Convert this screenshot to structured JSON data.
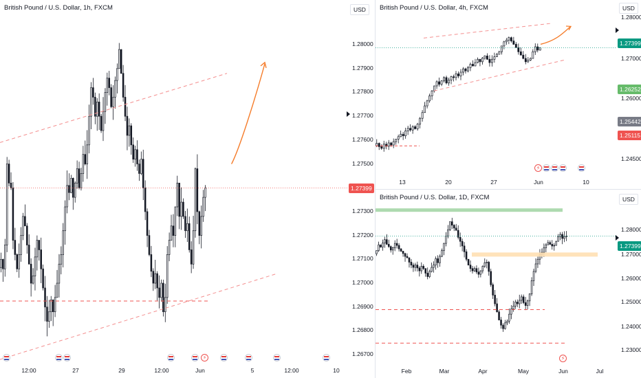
{
  "chart_data": [
    {
      "id": "h1",
      "type": "candlestick",
      "title": "British Pound / U.S. Dollar, 1h, FXCM",
      "currency": "USD",
      "x_ticks": [
        "12:00",
        "27",
        "29",
        "12:00",
        "Jun",
        "5",
        "12:00",
        "10"
      ],
      "y_ticks": [
        "1.28000",
        "1.27900",
        "1.27800",
        "1.27700",
        "1.27600",
        "1.27500",
        "1.27300",
        "1.27200",
        "1.27100",
        "1.27000",
        "1.26900",
        "1.26800",
        "1.26700"
      ],
      "ylim": [
        1.2666,
        1.2813
      ],
      "last_price": "1.27399",
      "series_closes": [
        1.271,
        1.2706,
        1.2716,
        1.275,
        1.2742,
        1.274,
        1.2718,
        1.2712,
        1.2706,
        1.2712,
        1.272,
        1.2728,
        1.2724,
        1.2716,
        1.2708,
        1.27,
        1.2703,
        1.2711,
        1.2718,
        1.2714,
        1.2706,
        1.2698,
        1.269,
        1.2684,
        1.2688,
        1.2693,
        1.2688,
        1.2694,
        1.27,
        1.2708,
        1.2712,
        1.2722,
        1.2732,
        1.2741,
        1.2738,
        1.2744,
        1.2736,
        1.2742,
        1.2748,
        1.274,
        1.2746,
        1.2754,
        1.275,
        1.2758,
        1.277,
        1.2782,
        1.2778,
        1.277,
        1.2776,
        1.277,
        1.2764,
        1.2772,
        1.278,
        1.2786,
        1.2782,
        1.2774,
        1.2778,
        1.2785,
        1.279,
        1.2798,
        1.2788,
        1.2778,
        1.277,
        1.2762,
        1.2766,
        1.2758,
        1.2752,
        1.2756,
        1.275,
        1.2746,
        1.2752,
        1.274,
        1.273,
        1.272,
        1.2712,
        1.2705,
        1.27,
        1.2704,
        1.2698,
        1.2694,
        1.27,
        1.2688,
        1.2694,
        1.2712,
        1.2718,
        1.2724,
        1.272,
        1.2732,
        1.2742,
        1.2728,
        1.2734,
        1.2728,
        1.2722,
        1.2725,
        1.2714,
        1.2708,
        1.2722,
        1.2748,
        1.273,
        1.272,
        1.2728,
        1.2736,
        1.274
      ],
      "annotations": {
        "channel_upper": [
          [
            0,
            1.2759
          ],
          [
            1.0,
            1.2788
          ]
        ],
        "channel_lower": [
          [
            0,
            1.2668
          ],
          [
            1.0,
            1.2704
          ]
        ],
        "support_line": [
          [
            0,
            1.26925
          ],
          [
            0.93,
            1.26925
          ]
        ],
        "projection_arrow": [
          [
            0.765,
            1.275
          ],
          [
            0.79,
            1.2756
          ],
          [
            0.84,
            1.2776
          ],
          [
            0.875,
            1.2792
          ]
        ]
      }
    },
    {
      "id": "h4",
      "type": "candlestick",
      "title": "British Pound / U.S. Dollar, 4h, FXCM",
      "currency": "USD",
      "x_ticks": [
        "13",
        "20",
        "27",
        "Jun",
        "10"
      ],
      "y_ticks": [
        "1.28000",
        "1.27000",
        "1.26000",
        "1.25000",
        "1.24500"
      ],
      "ylim": [
        1.243,
        1.2828
      ],
      "last_price": "1.27399",
      "badges": [
        "1.27399",
        "1.26252",
        "1.25442",
        "1.25115"
      ],
      "series_closes": [
        1.251,
        1.2502,
        1.2498,
        1.2508,
        1.2503,
        1.2511,
        1.2506,
        1.2514,
        1.252,
        1.2526,
        1.2532,
        1.2528,
        1.254,
        1.2546,
        1.2542,
        1.255,
        1.2545,
        1.2556,
        1.257,
        1.2584,
        1.26,
        1.2612,
        1.2624,
        1.2636,
        1.2648,
        1.2658,
        1.2652,
        1.266,
        1.2668,
        1.2655,
        1.2662,
        1.267,
        1.2668,
        1.2677,
        1.2672,
        1.2681,
        1.2689,
        1.2684,
        1.2692,
        1.27,
        1.2696,
        1.2704,
        1.2712,
        1.2706,
        1.2715,
        1.272,
        1.2712,
        1.2704,
        1.2712,
        1.2718,
        1.2724,
        1.273,
        1.2744,
        1.2754,
        1.2758,
        1.2764,
        1.2756,
        1.2748,
        1.274,
        1.273,
        1.2722,
        1.2714,
        1.2706,
        1.271,
        1.2714,
        1.273,
        1.2742,
        1.2734,
        1.274
      ]
    },
    {
      "id": "d1",
      "type": "candlestick",
      "title": "British Pound / U.S. Dollar, 1D, FXCM",
      "currency": "USD",
      "x_ticks": [
        "Feb",
        "Mar",
        "Apr",
        "May",
        "Jun",
        "Jul"
      ],
      "y_ticks": [
        "1.28000",
        "1.27000",
        "1.26000",
        "1.25000",
        "1.24000",
        "1.23000"
      ],
      "ylim": [
        1.2292,
        1.2858
      ],
      "last_price": "1.27399",
      "series_closes": [
        1.269,
        1.271,
        1.2702,
        1.2716,
        1.2728,
        1.2712,
        1.2704,
        1.2692,
        1.27,
        1.2715,
        1.2708,
        1.2696,
        1.2688,
        1.268,
        1.267,
        1.2665,
        1.265,
        1.264,
        1.2632,
        1.264,
        1.263,
        1.262,
        1.2636,
        1.2628,
        1.2612,
        1.26,
        1.2618,
        1.2632,
        1.264,
        1.2662,
        1.2648,
        1.267,
        1.269,
        1.2715,
        1.274,
        1.2762,
        1.279,
        1.2778,
        1.2768,
        1.276,
        1.2736,
        1.2722,
        1.2706,
        1.2686,
        1.266,
        1.264,
        1.2628,
        1.262,
        1.2628,
        1.2616,
        1.2608,
        1.262,
        1.2636,
        1.2648,
        1.265,
        1.2618,
        1.2572,
        1.2536,
        1.2506,
        1.2478,
        1.245,
        1.2432,
        1.242,
        1.244,
        1.2446,
        1.247,
        1.2488,
        1.2498,
        1.2512,
        1.2506,
        1.2518,
        1.253,
        1.251,
        1.25,
        1.2516,
        1.254,
        1.2586,
        1.2618,
        1.2644,
        1.266,
        1.2676,
        1.2684,
        1.27,
        1.271,
        1.2718,
        1.2712,
        1.2706,
        1.2708,
        1.2722,
        1.2738,
        1.2746,
        1.2732,
        1.2738,
        1.274
      ],
      "annotations": {
        "resistance_zone": [
          1.2717,
          1.2722
        ],
        "support_zone": [
          1.267,
          1.2677
        ],
        "dashed_levels": [
          1.25,
          1.237
        ]
      }
    }
  ]
}
